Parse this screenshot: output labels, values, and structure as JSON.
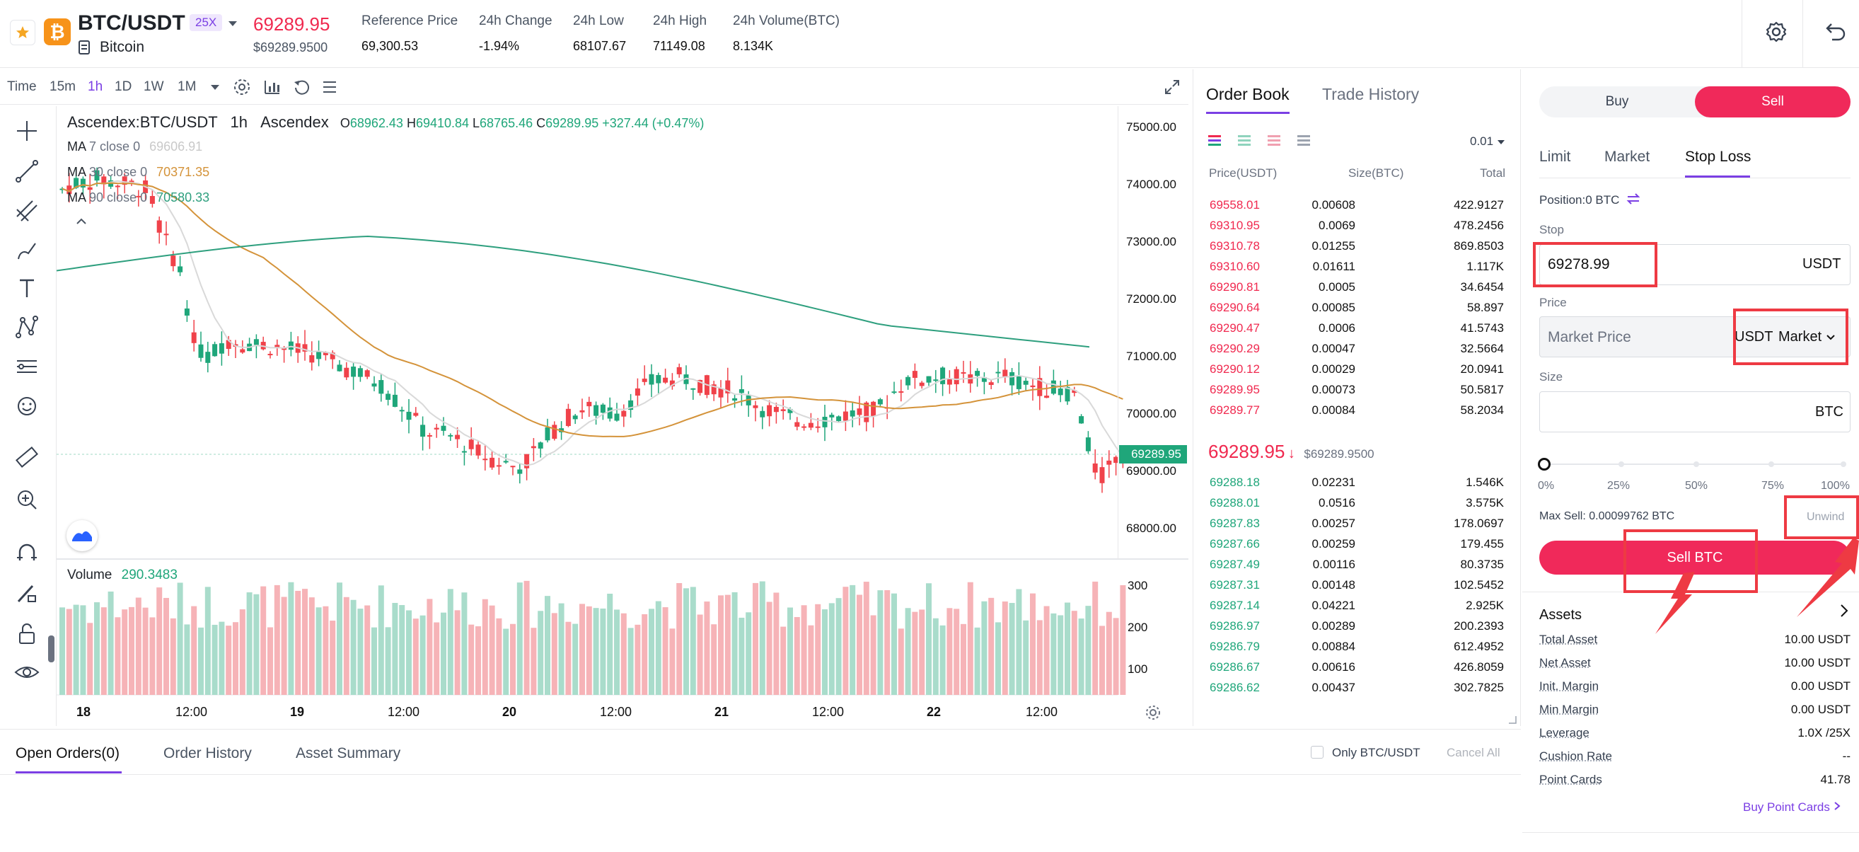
{
  "header": {
    "pair": "BTC/USDT",
    "leverage": "25X",
    "coin_name": "Bitcoin",
    "last_price": "69289.95",
    "last_price_usd": "$69289.9500",
    "stats": [
      {
        "label": "Reference Price",
        "value": "69,300.53"
      },
      {
        "label": "24h Change",
        "value": "-1.94%"
      },
      {
        "label": "24h Low",
        "value": "68107.67"
      },
      {
        "label": "24h High",
        "value": "71149.08"
      },
      {
        "label": "24h Volume(BTC)",
        "value": "8.134K"
      }
    ]
  },
  "chart_toolbar": {
    "intervals": [
      "Time",
      "15m",
      "1h",
      "1D",
      "1W",
      "1M"
    ],
    "active_interval": "1h"
  },
  "chart": {
    "symbol": "Ascendex:BTC/USDT",
    "interval": "1h",
    "exchange": "Ascendex",
    "ohlc": {
      "o_label": "O",
      "o": "68962.43",
      "h_label": "H",
      "h": "69410.84",
      "l_label": "L",
      "l": "68765.46",
      "c_label": "C",
      "c": "69289.95",
      "change": "+327.44 (+0.47%)"
    },
    "ma_lines": [
      {
        "label": "MA",
        "params": "7 close 0",
        "value": "69606.91",
        "color": "#d9d9d9"
      },
      {
        "label": "MA",
        "params": "30 close 0",
        "value": "70371.35",
        "color": "#d4933a"
      },
      {
        "label": "MA",
        "params": "90 close 0",
        "value": "70580.33",
        "color": "#2e9f7e"
      }
    ],
    "price_axis": [
      "75000.00",
      "74000.00",
      "73000.00",
      "72000.00",
      "71000.00",
      "70000.00",
      "69000.00",
      "68000.00"
    ],
    "current_price_tag": "69289.95",
    "volume_label": "Volume",
    "volume_value": "290.3483",
    "volume_axis": [
      "300",
      "200",
      "100"
    ],
    "time_axis": [
      "18",
      "12:00",
      "19",
      "12:00",
      "20",
      "12:00",
      "21",
      "12:00",
      "22",
      "12:00"
    ]
  },
  "order_book": {
    "tabs": [
      "Order Book",
      "Trade History"
    ],
    "active_tab": "Order Book",
    "precision": "0.01",
    "columns": [
      "Price(USDT)",
      "Size(BTC)",
      "Total"
    ],
    "asks": [
      [
        "69558.01",
        "0.00608",
        "422.9127"
      ],
      [
        "69310.95",
        "0.0069",
        "478.2456"
      ],
      [
        "69310.78",
        "0.01255",
        "869.8503"
      ],
      [
        "69310.60",
        "0.01611",
        "1.117K"
      ],
      [
        "69290.81",
        "0.0005",
        "34.6454"
      ],
      [
        "69290.64",
        "0.00085",
        "58.897"
      ],
      [
        "69290.47",
        "0.0006",
        "41.5743"
      ],
      [
        "69290.29",
        "0.00047",
        "32.5664"
      ],
      [
        "69290.12",
        "0.00029",
        "20.0941"
      ],
      [
        "69289.95",
        "0.00073",
        "50.5817"
      ],
      [
        "69289.77",
        "0.00084",
        "58.2034"
      ]
    ],
    "mid_price": "69289.95",
    "mid_price_arrow": "↓",
    "mid_price_usd": "$69289.9500",
    "bids": [
      [
        "69288.18",
        "0.02231",
        "1.546K"
      ],
      [
        "69288.01",
        "0.0516",
        "3.575K"
      ],
      [
        "69287.83",
        "0.00257",
        "178.0697"
      ],
      [
        "69287.66",
        "0.00259",
        "179.455"
      ],
      [
        "69287.49",
        "0.00116",
        "80.3735"
      ],
      [
        "69287.31",
        "0.00148",
        "102.5452"
      ],
      [
        "69287.14",
        "0.04221",
        "2.925K"
      ],
      [
        "69286.97",
        "0.00289",
        "200.2393"
      ],
      [
        "69286.79",
        "0.00884",
        "612.4952"
      ],
      [
        "69286.67",
        "0.00616",
        "426.8059"
      ],
      [
        "69286.62",
        "0.00437",
        "302.7825"
      ]
    ]
  },
  "bottom_tabs": {
    "tabs": [
      "Open Orders(0)",
      "Order History",
      "Asset Summary"
    ],
    "only_pair_label": "Only BTC/USDT",
    "cancel_all": "Cancel All"
  },
  "trade_panel": {
    "buy_label": "Buy",
    "sell_label": "Sell",
    "order_types": [
      "Limit",
      "Market",
      "Stop Loss"
    ],
    "active_order_type": "Stop Loss",
    "position": "Position:0 BTC",
    "stop_label": "Stop",
    "stop_value": "69278.99",
    "stop_unit": "USDT",
    "price_label": "Price",
    "price_placeholder": "Market Price",
    "price_unit": "USDT",
    "price_mode": "Market",
    "size_label": "Size",
    "size_unit": "BTC",
    "slider_marks": [
      "0%",
      "25%",
      "50%",
      "75%",
      "100%"
    ],
    "slider_value": 0,
    "max_sell": "Max Sell: 0.00099762 BTC",
    "unwind": "Unwind",
    "submit": "Sell BTC"
  },
  "assets": {
    "title": "Assets",
    "rows": [
      {
        "k": "Total Asset",
        "v": "10.00 USDT"
      },
      {
        "k": "Net Asset",
        "v": "10.00 USDT"
      },
      {
        "k": "Init. Margin",
        "v": "0.00 USDT"
      },
      {
        "k": "Min Margin",
        "v": "0.00 USDT"
      },
      {
        "k": "Leverage",
        "v": "1.0X /25X"
      },
      {
        "k": "Cushion Rate",
        "v": "--"
      },
      {
        "k": "Point Cards",
        "v": "41.78"
      }
    ],
    "buy_point_cards": "Buy Point Cards"
  },
  "colors": {
    "accent_red": "#f0294f",
    "accent_green": "#1fa67a",
    "purple": "#7b3fe4",
    "annotation_red": "#ee3a43"
  }
}
